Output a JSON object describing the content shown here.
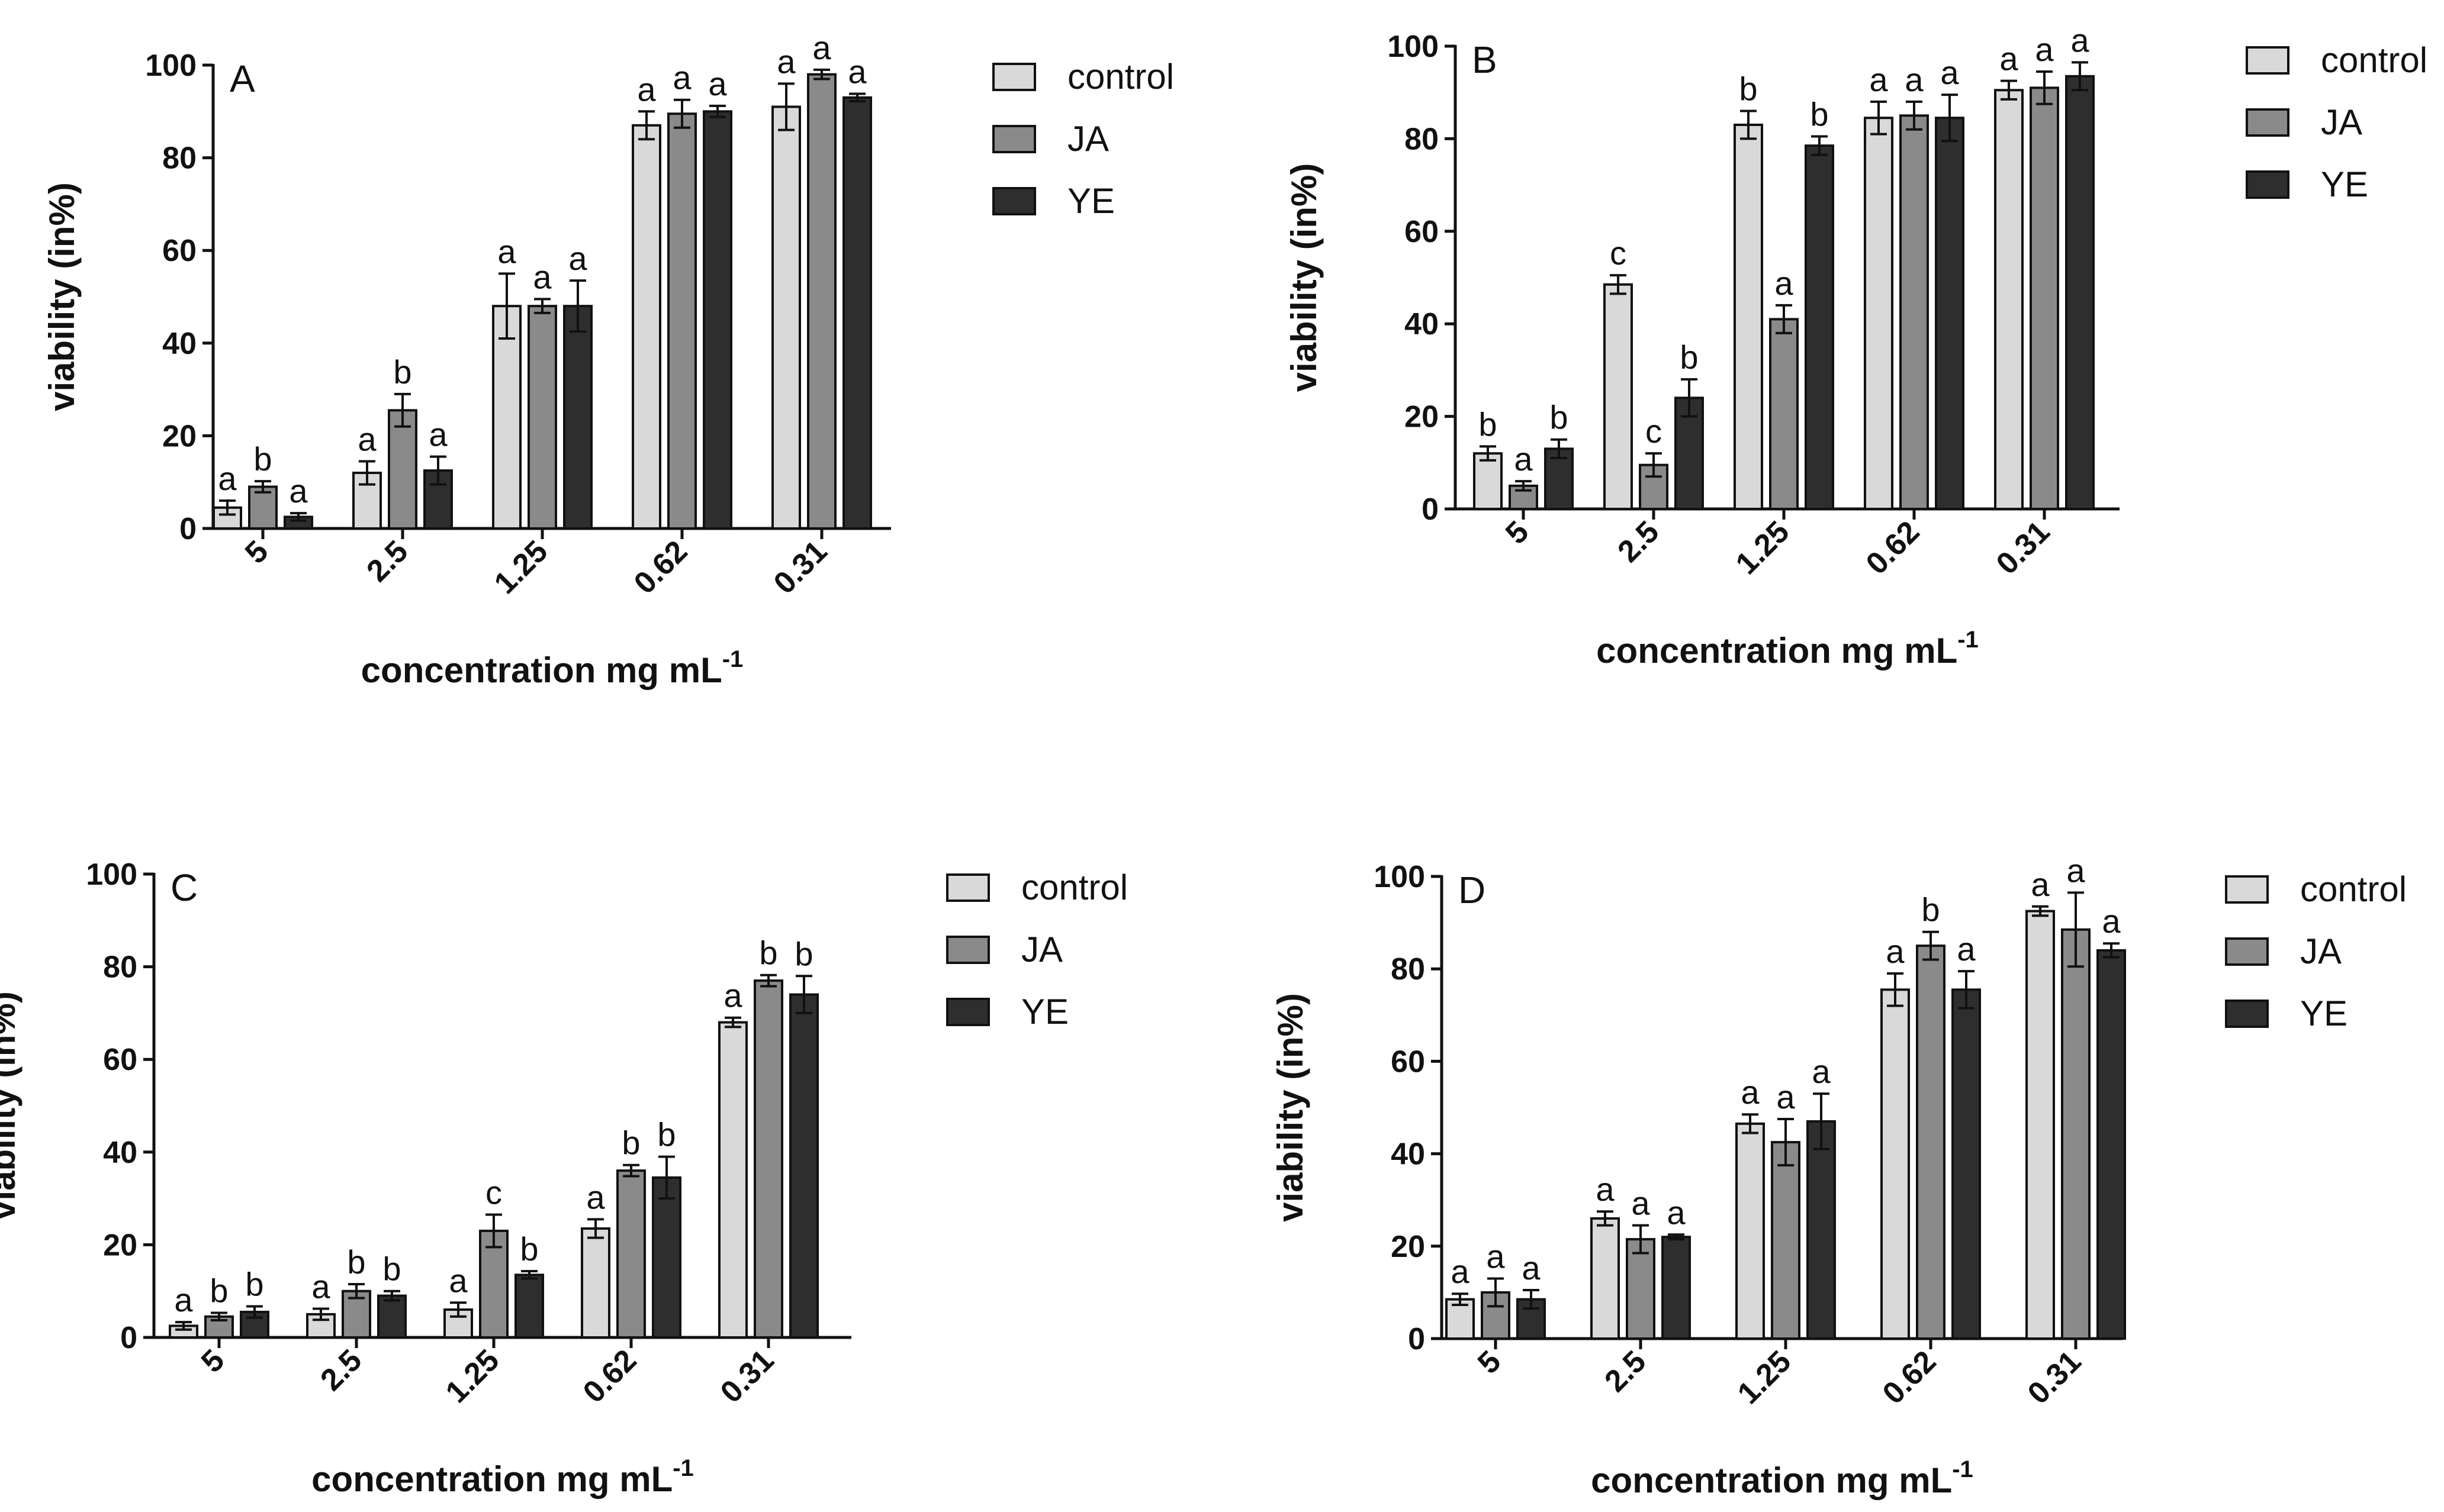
{
  "chart_data": [
    {
      "type": "bar",
      "panel": "A",
      "categories": [
        "5",
        "2.5",
        "1.25",
        "0.62",
        "0.31"
      ],
      "series": [
        {
          "name": "control",
          "values": [
            4.5,
            12,
            48,
            87,
            91
          ],
          "errors": [
            1.5,
            2.5,
            7,
            3,
            5
          ],
          "letters": [
            "a",
            "a",
            "a",
            "a",
            "a"
          ],
          "color": "#d9d9d9"
        },
        {
          "name": "JA",
          "values": [
            9,
            25.5,
            48,
            89.5,
            98
          ],
          "errors": [
            1.2,
            3.5,
            1.5,
            3,
            1
          ],
          "letters": [
            "b",
            "b",
            "a",
            "a",
            "a"
          ],
          "color": "#8a8a8a"
        },
        {
          "name": "YE",
          "values": [
            2.5,
            12.5,
            48,
            90,
            93
          ],
          "errors": [
            0.8,
            3,
            5.5,
            1.2,
            0.8
          ],
          "letters": [
            "a",
            "a",
            "a",
            "a",
            "a"
          ],
          "color": "#2e2e2e"
        }
      ],
      "xlabel": "concentration mg mL",
      "xlabel_sup": "-1",
      "ylabel": "viability (in%)",
      "ylim": [
        0,
        100
      ],
      "yticks": [
        "0",
        "20",
        "40",
        "60",
        "80",
        "100"
      ],
      "legend_position": "right"
    },
    {
      "type": "bar",
      "panel": "B",
      "categories": [
        "5",
        "2.5",
        "1.25",
        "0.62",
        "0.31"
      ],
      "series": [
        {
          "name": "control",
          "values": [
            12,
            48.5,
            83,
            84.5,
            90.5
          ],
          "errors": [
            1.5,
            2,
            3,
            3.5,
            2
          ],
          "letters": [
            "b",
            "c",
            "b",
            "a",
            "a"
          ],
          "color": "#d9d9d9"
        },
        {
          "name": "JA",
          "values": [
            5,
            9.5,
            41,
            85,
            91
          ],
          "errors": [
            1,
            2.5,
            3,
            3,
            3.5
          ],
          "letters": [
            "a",
            "c",
            "a",
            "a",
            "a"
          ],
          "color": "#8a8a8a"
        },
        {
          "name": "YE",
          "values": [
            13,
            24,
            78.5,
            84.5,
            93.5
          ],
          "errors": [
            2,
            4,
            2,
            5,
            3
          ],
          "letters": [
            "b",
            "b",
            "b",
            "a",
            "a"
          ],
          "color": "#2e2e2e"
        }
      ],
      "xlabel": "concentration mg mL",
      "xlabel_sup": "-1",
      "ylabel": "viability (in%)",
      "ylim": [
        0,
        100
      ],
      "yticks": [
        "0",
        "20",
        "40",
        "60",
        "80",
        "100"
      ],
      "legend_position": "right"
    },
    {
      "type": "bar",
      "panel": "C",
      "categories": [
        "5",
        "2.5",
        "1.25",
        "0.62",
        "0.31"
      ],
      "series": [
        {
          "name": "control",
          "values": [
            2.5,
            5,
            6,
            23.5,
            68
          ],
          "errors": [
            0.8,
            1.2,
            1.5,
            2,
            1
          ],
          "letters": [
            "a",
            "a",
            "a",
            "a",
            "a"
          ],
          "color": "#d9d9d9"
        },
        {
          "name": "JA",
          "values": [
            4.5,
            10,
            23,
            36,
            77
          ],
          "errors": [
            0.8,
            1.5,
            3.5,
            1.2,
            1.2
          ],
          "letters": [
            "b",
            "b",
            "c",
            "b",
            "b"
          ],
          "color": "#8a8a8a"
        },
        {
          "name": "YE",
          "values": [
            5.5,
            9,
            13.5,
            34.5,
            74
          ],
          "errors": [
            1.2,
            1,
            0.8,
            4.5,
            4
          ],
          "letters": [
            "b",
            "b",
            "b",
            "b",
            "b"
          ],
          "color": "#2e2e2e"
        }
      ],
      "xlabel": "concentration mg mL",
      "xlabel_sup": "-1",
      "ylabel": "viability (in%)",
      "ylim": [
        0,
        100
      ],
      "yticks": [
        "0",
        "20",
        "40",
        "60",
        "80",
        "100"
      ],
      "legend_position": "right"
    },
    {
      "type": "bar",
      "panel": "D",
      "categories": [
        "5",
        "2.5",
        "1.25",
        "0.62",
        "0.31"
      ],
      "series": [
        {
          "name": "control",
          "values": [
            8.5,
            26,
            46.5,
            75.5,
            92.5
          ],
          "errors": [
            1.2,
            1.5,
            2,
            3.5,
            1
          ],
          "letters": [
            "a",
            "a",
            "a",
            "a",
            "a"
          ],
          "color": "#d9d9d9"
        },
        {
          "name": "JA",
          "values": [
            10,
            21.5,
            42.5,
            85,
            88.5
          ],
          "errors": [
            3,
            3,
            5,
            3,
            8
          ],
          "letters": [
            "a",
            "a",
            "a",
            "b",
            "a"
          ],
          "color": "#8a8a8a"
        },
        {
          "name": "YE",
          "values": [
            8.5,
            22,
            47,
            75.5,
            84
          ],
          "errors": [
            2,
            0.5,
            6,
            4,
            1.5
          ],
          "letters": [
            "a",
            "a",
            "a",
            "a",
            "a"
          ],
          "color": "#2e2e2e"
        }
      ],
      "xlabel": "concentration mg mL",
      "xlabel_sup": "-1",
      "ylabel": "viability (in%)",
      "ylim": [
        0,
        100
      ],
      "yticks": [
        "0",
        "20",
        "40",
        "60",
        "80",
        "100"
      ],
      "legend_position": "right"
    }
  ]
}
